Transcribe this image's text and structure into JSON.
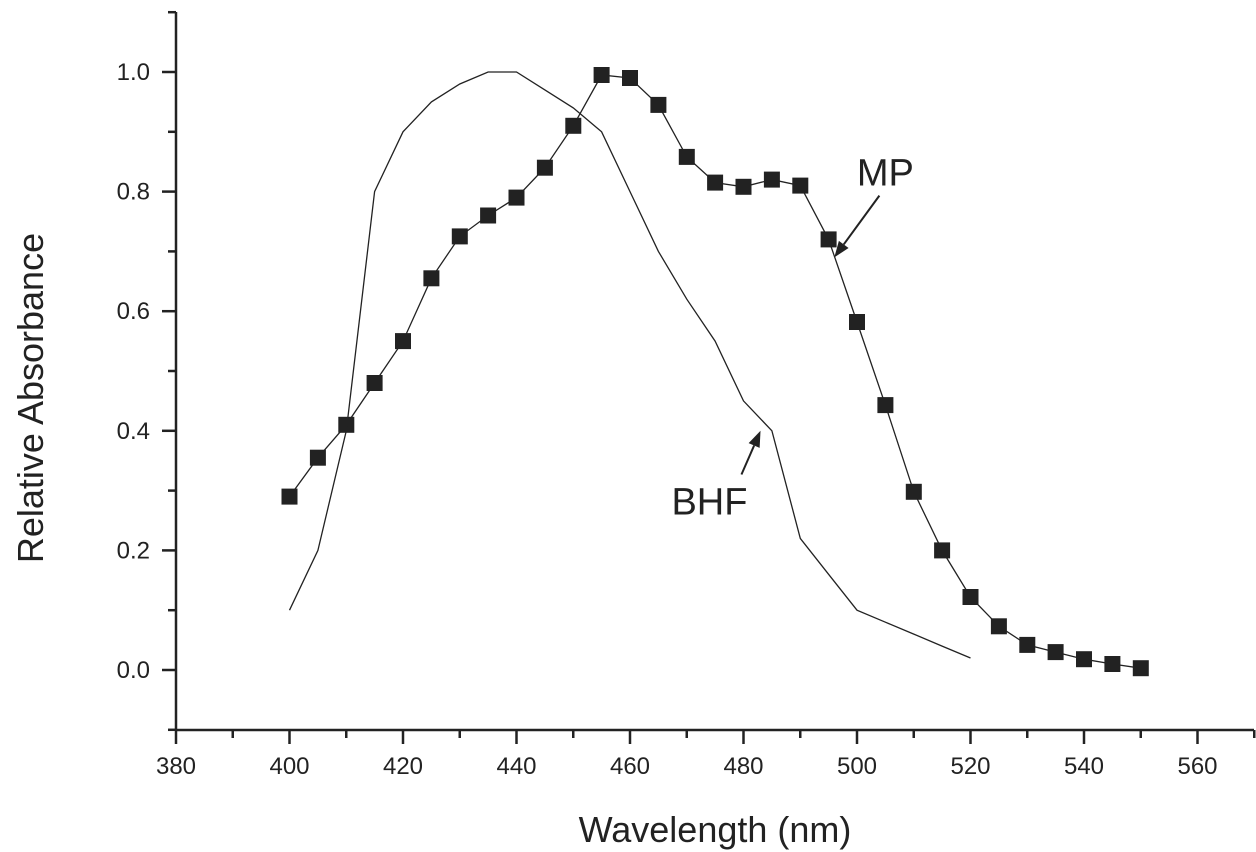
{
  "chart_data": {
    "type": "line",
    "title": "",
    "xlabel": "Wavelength (nm)",
    "ylabel": "Relative Absorbance",
    "xlim": [
      380,
      570
    ],
    "ylim": [
      -0.1,
      1.1
    ],
    "x_ticks": [
      380,
      400,
      420,
      440,
      460,
      480,
      500,
      520,
      540,
      560
    ],
    "x_tick_labels": [
      "380",
      "400",
      "420",
      "440",
      "460",
      "480",
      "500",
      "520",
      "540",
      "560"
    ],
    "y_ticks": [
      0.0,
      0.2,
      0.4,
      0.6,
      0.8,
      1.0
    ],
    "y_tick_labels": [
      "0.0",
      "0.2",
      "0.4",
      "0.6",
      "0.8",
      "1.0"
    ],
    "grid": false,
    "legend": "none",
    "color": "#222222",
    "series": [
      {
        "name": "MP",
        "marker": "square",
        "x": [
          400,
          405,
          410,
          415,
          420,
          425,
          430,
          435,
          440,
          445,
          450,
          455,
          460,
          465,
          470,
          475,
          480,
          485,
          490,
          495,
          500,
          505,
          510,
          515,
          520,
          525,
          530,
          535,
          540,
          545,
          550
        ],
        "y": [
          0.29,
          0.355,
          0.41,
          0.48,
          0.55,
          0.655,
          0.725,
          0.76,
          0.79,
          0.84,
          0.91,
          0.995,
          0.99,
          0.945,
          0.858,
          0.815,
          0.808,
          0.82,
          0.81,
          0.72,
          0.582,
          0.443,
          0.298,
          0.2,
          0.122,
          0.073,
          0.042,
          0.03,
          0.018,
          0.01,
          0.003
        ]
      },
      {
        "name": "BHF",
        "marker": "none",
        "x": [
          400,
          405,
          410,
          415,
          420,
          425,
          430,
          435,
          440,
          445,
          450,
          455,
          460,
          465,
          470,
          475,
          480,
          485,
          490,
          495,
          500,
          505,
          510,
          515,
          520
        ],
        "y": [
          0.1,
          0.2,
          0.4,
          0.8,
          0.9,
          0.95,
          0.98,
          1.0,
          1.0,
          0.97,
          0.94,
          0.9,
          0.8,
          0.7,
          0.62,
          0.55,
          0.45,
          0.4,
          0.22,
          0.16,
          0.1,
          0.08,
          0.06,
          0.04,
          0.02
        ]
      }
    ],
    "annotations": [
      {
        "label": "MP",
        "series": "MP",
        "point_x": 496,
        "point_y": 0.69,
        "text_x": 505,
        "text_y": 0.81
      },
      {
        "label": "BHF",
        "series": "BHF",
        "point_x": 483,
        "point_y": 0.4,
        "text_x": 474,
        "text_y": 0.26
      }
    ]
  }
}
